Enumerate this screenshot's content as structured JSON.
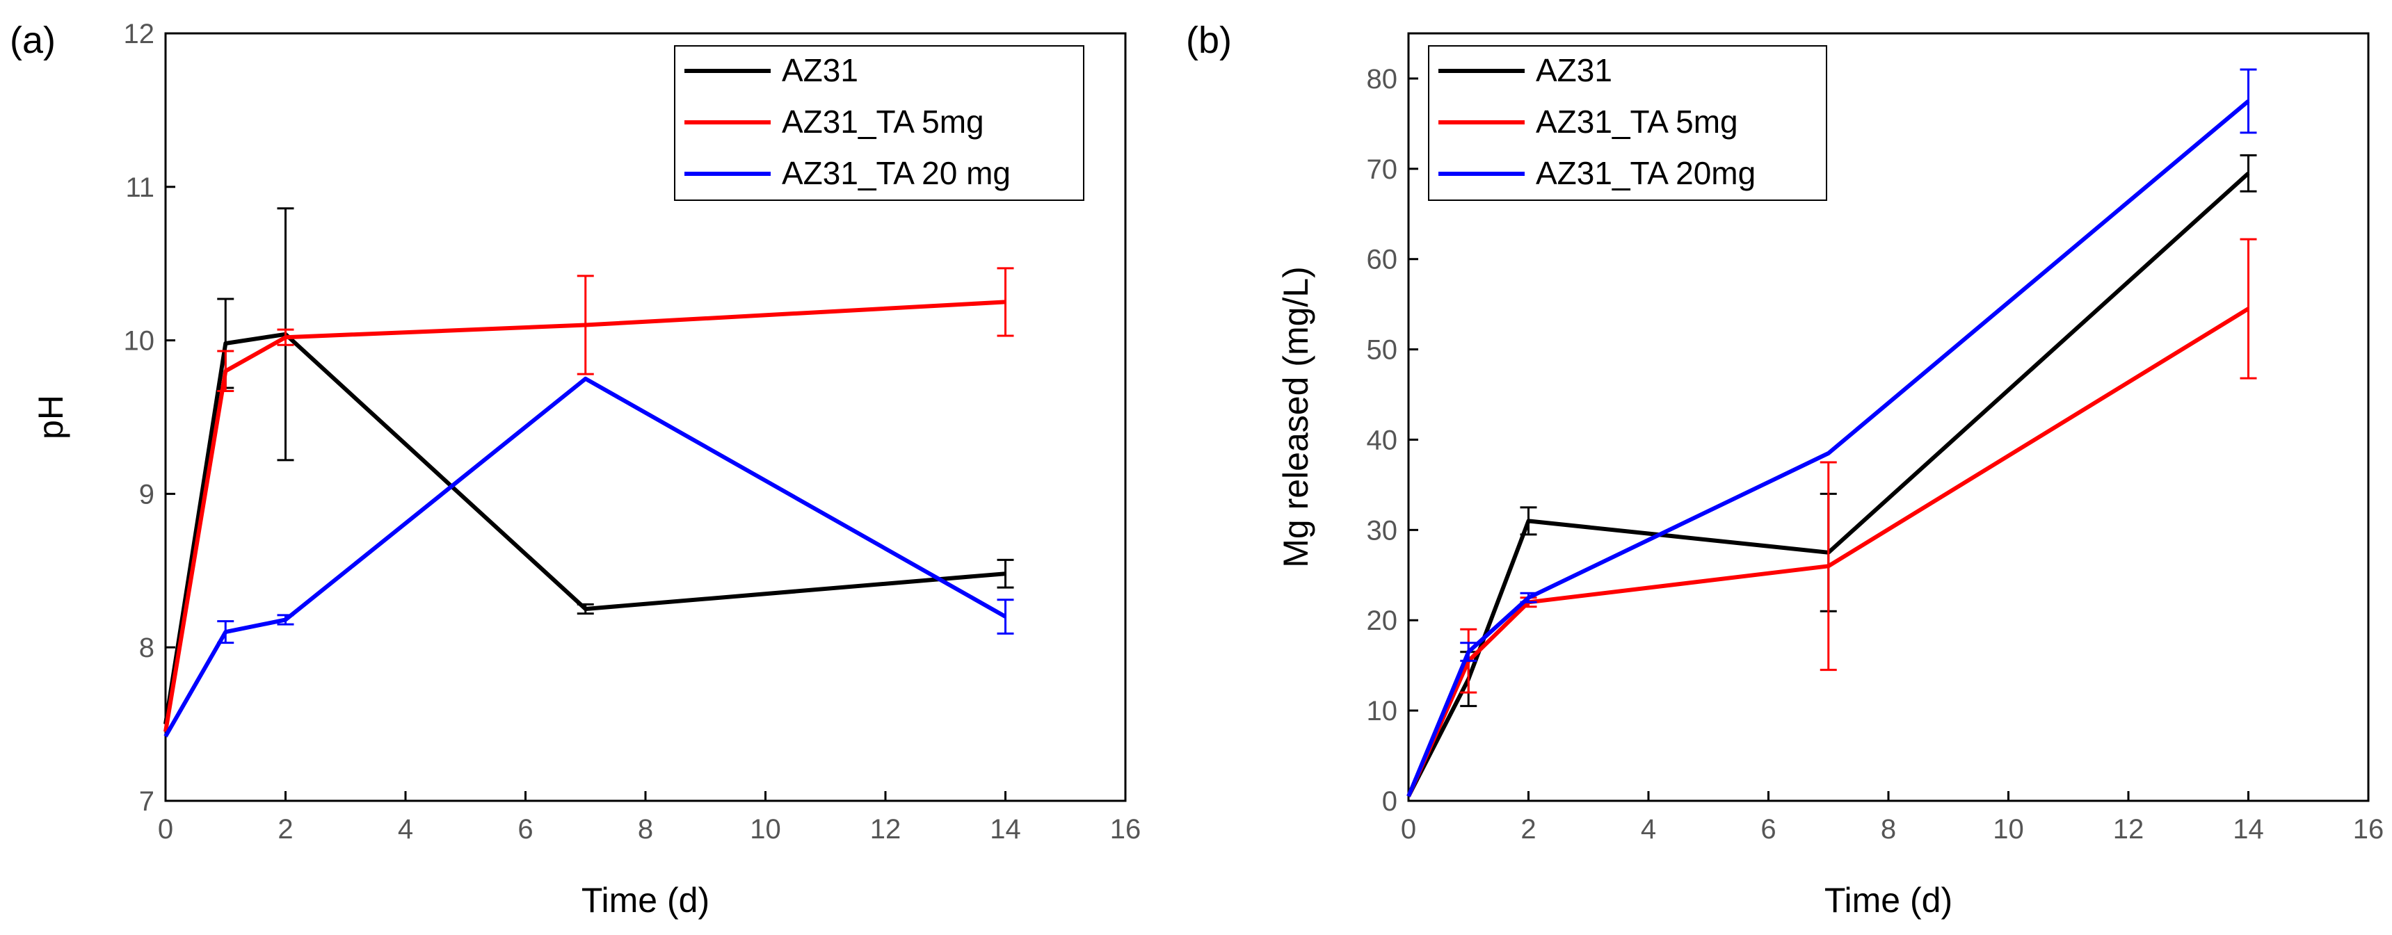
{
  "chart_data": [
    {
      "panel_label": "(a)",
      "type": "line",
      "xlabel": "Time (d)",
      "ylabel": "pH",
      "xlim": [
        0,
        16
      ],
      "ylim": [
        7,
        12
      ],
      "xticks": [
        0,
        2,
        4,
        6,
        8,
        10,
        12,
        14,
        16
      ],
      "yticks": [
        7,
        8,
        9,
        10,
        11,
        12
      ],
      "legend_position": "top-right",
      "series": [
        {
          "name": "AZ31",
          "color": "#000000",
          "x": [
            0,
            1,
            2,
            7,
            14
          ],
          "y": [
            7.5,
            9.98,
            10.04,
            8.25,
            8.48
          ],
          "err": [
            0,
            0.29,
            0.82,
            0.03,
            0.09
          ]
        },
        {
          "name": "AZ31_TA 5mg",
          "color": "#ff0000",
          "x": [
            0,
            1,
            2,
            7,
            14
          ],
          "y": [
            7.45,
            9.8,
            10.02,
            10.1,
            10.25
          ],
          "err": [
            0,
            0.13,
            0.05,
            0.32,
            0.22
          ]
        },
        {
          "name": "AZ31_TA 20 mg",
          "color": "#0000ff",
          "x": [
            0,
            1,
            2,
            7,
            14
          ],
          "y": [
            7.42,
            8.1,
            8.18,
            9.75,
            8.2
          ],
          "err": [
            0,
            0.07,
            0.03,
            0,
            0.11
          ]
        }
      ]
    },
    {
      "panel_label": "(b)",
      "type": "line",
      "xlabel": "Time (d)",
      "ylabel": "Mg released (mg/L)",
      "xlim": [
        0,
        16
      ],
      "ylim": [
        0,
        85
      ],
      "xticks": [
        0,
        2,
        4,
        6,
        8,
        10,
        12,
        14,
        16
      ],
      "yticks": [
        0,
        10,
        20,
        30,
        40,
        50,
        60,
        70,
        80
      ],
      "legend_position": "top-left",
      "series": [
        {
          "name": "AZ31",
          "color": "#000000",
          "x": [
            0,
            1,
            2,
            7,
            14
          ],
          "y": [
            0.5,
            13.5,
            31,
            27.5,
            69.5
          ],
          "err": [
            0,
            3,
            1.5,
            6.5,
            2
          ]
        },
        {
          "name": "AZ31_TA 5mg",
          "color": "#ff0000",
          "x": [
            0,
            1,
            2,
            7,
            14
          ],
          "y": [
            0.5,
            15.5,
            22,
            26,
            54.5
          ],
          "err": [
            0,
            3.5,
            0.5,
            11.5,
            7.7
          ]
        },
        {
          "name": "AZ31_TA 20mg",
          "color": "#0000ff",
          "x": [
            0,
            1,
            2,
            7,
            14
          ],
          "y": [
            0.5,
            16.5,
            22.5,
            38.5,
            77.5
          ],
          "err": [
            0,
            1,
            0.5,
            0,
            3.5
          ]
        }
      ]
    }
  ]
}
